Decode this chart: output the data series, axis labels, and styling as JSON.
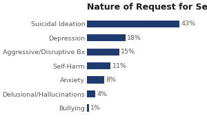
{
  "title": "Nature of Request for Service",
  "categories": [
    "Bullying",
    "Delusional/Hallucinations",
    "Anxiety",
    "Self-Harm",
    "Aggressive/Disruptive Bx",
    "Depression",
    "Suicidal Ideation"
  ],
  "values": [
    1,
    4,
    8,
    11,
    15,
    18,
    43
  ],
  "bar_color": "#1f3a6e",
  "label_color": "#595959",
  "title_color": "#1a1a1a",
  "background_color": "#ffffff",
  "xlim": [
    0,
    52
  ],
  "title_fontsize": 9,
  "label_fontsize": 6.8,
  "value_fontsize": 6.8
}
